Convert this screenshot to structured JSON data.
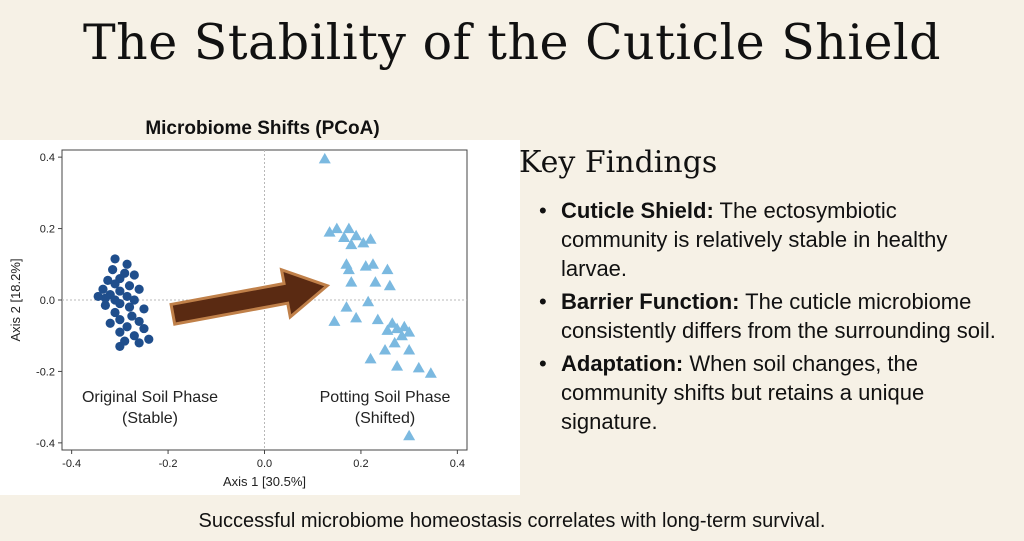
{
  "title": "The Stability of the Cuticle Shield",
  "chart_data": {
    "type": "scatter",
    "title": "Microbiome Shifts (PCoA)",
    "xlabel": "Axis 1 [30.5%]",
    "ylabel": "Axis 2 [18.2%]",
    "xlim": [
      -0.42,
      0.42
    ],
    "ylim": [
      -0.42,
      0.42
    ],
    "x_ticks": [
      "-0.4",
      "-0.2",
      "0.0",
      "0.2",
      "0.4"
    ],
    "y_ticks": [
      "0.4",
      "0.2",
      "0.0",
      "-0.2",
      "-0.4"
    ],
    "grid": false,
    "series": [
      {
        "color": "#1f4e8c",
        "marker": "circle",
        "points": [
          [
            -0.31,
            0.115
          ],
          [
            -0.285,
            0.1
          ],
          [
            -0.315,
            0.085
          ],
          [
            -0.29,
            0.075
          ],
          [
            -0.27,
            0.07
          ],
          [
            -0.3,
            0.06
          ],
          [
            -0.325,
            0.055
          ],
          [
            -0.31,
            0.045
          ],
          [
            -0.28,
            0.04
          ],
          [
            -0.335,
            0.03
          ],
          [
            -0.3,
            0.025
          ],
          [
            -0.26,
            0.03
          ],
          [
            -0.32,
            0.015
          ],
          [
            -0.285,
            0.01
          ],
          [
            -0.31,
            0.0
          ],
          [
            -0.27,
            0.0
          ],
          [
            -0.3,
            -0.01
          ],
          [
            -0.33,
            -0.015
          ],
          [
            -0.28,
            -0.02
          ],
          [
            -0.25,
            -0.025
          ],
          [
            -0.31,
            -0.035
          ],
          [
            -0.275,
            -0.045
          ],
          [
            -0.3,
            -0.055
          ],
          [
            -0.26,
            -0.06
          ],
          [
            -0.32,
            -0.065
          ],
          [
            -0.285,
            -0.075
          ],
          [
            -0.25,
            -0.08
          ],
          [
            -0.3,
            -0.09
          ],
          [
            -0.27,
            -0.1
          ],
          [
            -0.29,
            -0.115
          ],
          [
            -0.3,
            -0.13
          ],
          [
            -0.26,
            -0.12
          ],
          [
            -0.24,
            -0.11
          ],
          [
            -0.33,
            0.005
          ],
          [
            -0.345,
            0.01
          ]
        ]
      },
      {
        "color": "#7bb9e0",
        "marker": "triangle",
        "points": [
          [
            0.125,
            0.395
          ],
          [
            0.15,
            0.2
          ],
          [
            0.135,
            0.19
          ],
          [
            0.175,
            0.2
          ],
          [
            0.19,
            0.18
          ],
          [
            0.165,
            0.175
          ],
          [
            0.22,
            0.17
          ],
          [
            0.18,
            0.155
          ],
          [
            0.205,
            0.16
          ],
          [
            0.17,
            0.1
          ],
          [
            0.21,
            0.095
          ],
          [
            0.225,
            0.1
          ],
          [
            0.175,
            0.085
          ],
          [
            0.255,
            0.085
          ],
          [
            0.18,
            0.05
          ],
          [
            0.23,
            0.05
          ],
          [
            0.26,
            0.04
          ],
          [
            0.215,
            -0.005
          ],
          [
            0.17,
            -0.02
          ],
          [
            0.145,
            -0.06
          ],
          [
            0.19,
            -0.05
          ],
          [
            0.235,
            -0.055
          ],
          [
            0.265,
            -0.065
          ],
          [
            0.275,
            -0.08
          ],
          [
            0.29,
            -0.075
          ],
          [
            0.255,
            -0.085
          ],
          [
            0.3,
            -0.09
          ],
          [
            0.285,
            -0.1
          ],
          [
            0.27,
            -0.12
          ],
          [
            0.25,
            -0.14
          ],
          [
            0.3,
            -0.14
          ],
          [
            0.22,
            -0.165
          ],
          [
            0.275,
            -0.185
          ],
          [
            0.345,
            -0.205
          ],
          [
            0.32,
            -0.19
          ],
          [
            0.3,
            -0.38
          ]
        ]
      }
    ],
    "annotations": [
      {
        "line1": "Original Soil Phase",
        "line2": "(Stable)"
      },
      {
        "line1": "Potting Soil Phase",
        "line2": "(Shifted)"
      }
    ],
    "arrow": {
      "from": [
        -0.19,
        -0.04
      ],
      "to": [
        0.13,
        0.04
      ],
      "color": "#5a2a12",
      "outline": "#c08049"
    }
  },
  "findings": {
    "heading": "Key Findings",
    "bullet": "•",
    "items": [
      {
        "term": "Cuticle Shield:",
        "text": " The ectosymbiotic community is relatively stable in healthy larvae."
      },
      {
        "term": "Barrier Function:",
        "text": " The cuticle microbiome consistently differs from the surrounding soil."
      },
      {
        "term": "Adaptation:",
        "text": " When soil changes, the community shifts but retains a unique signature."
      }
    ]
  },
  "footer": "Successful microbiome homeostasis correlates with long-term survival."
}
